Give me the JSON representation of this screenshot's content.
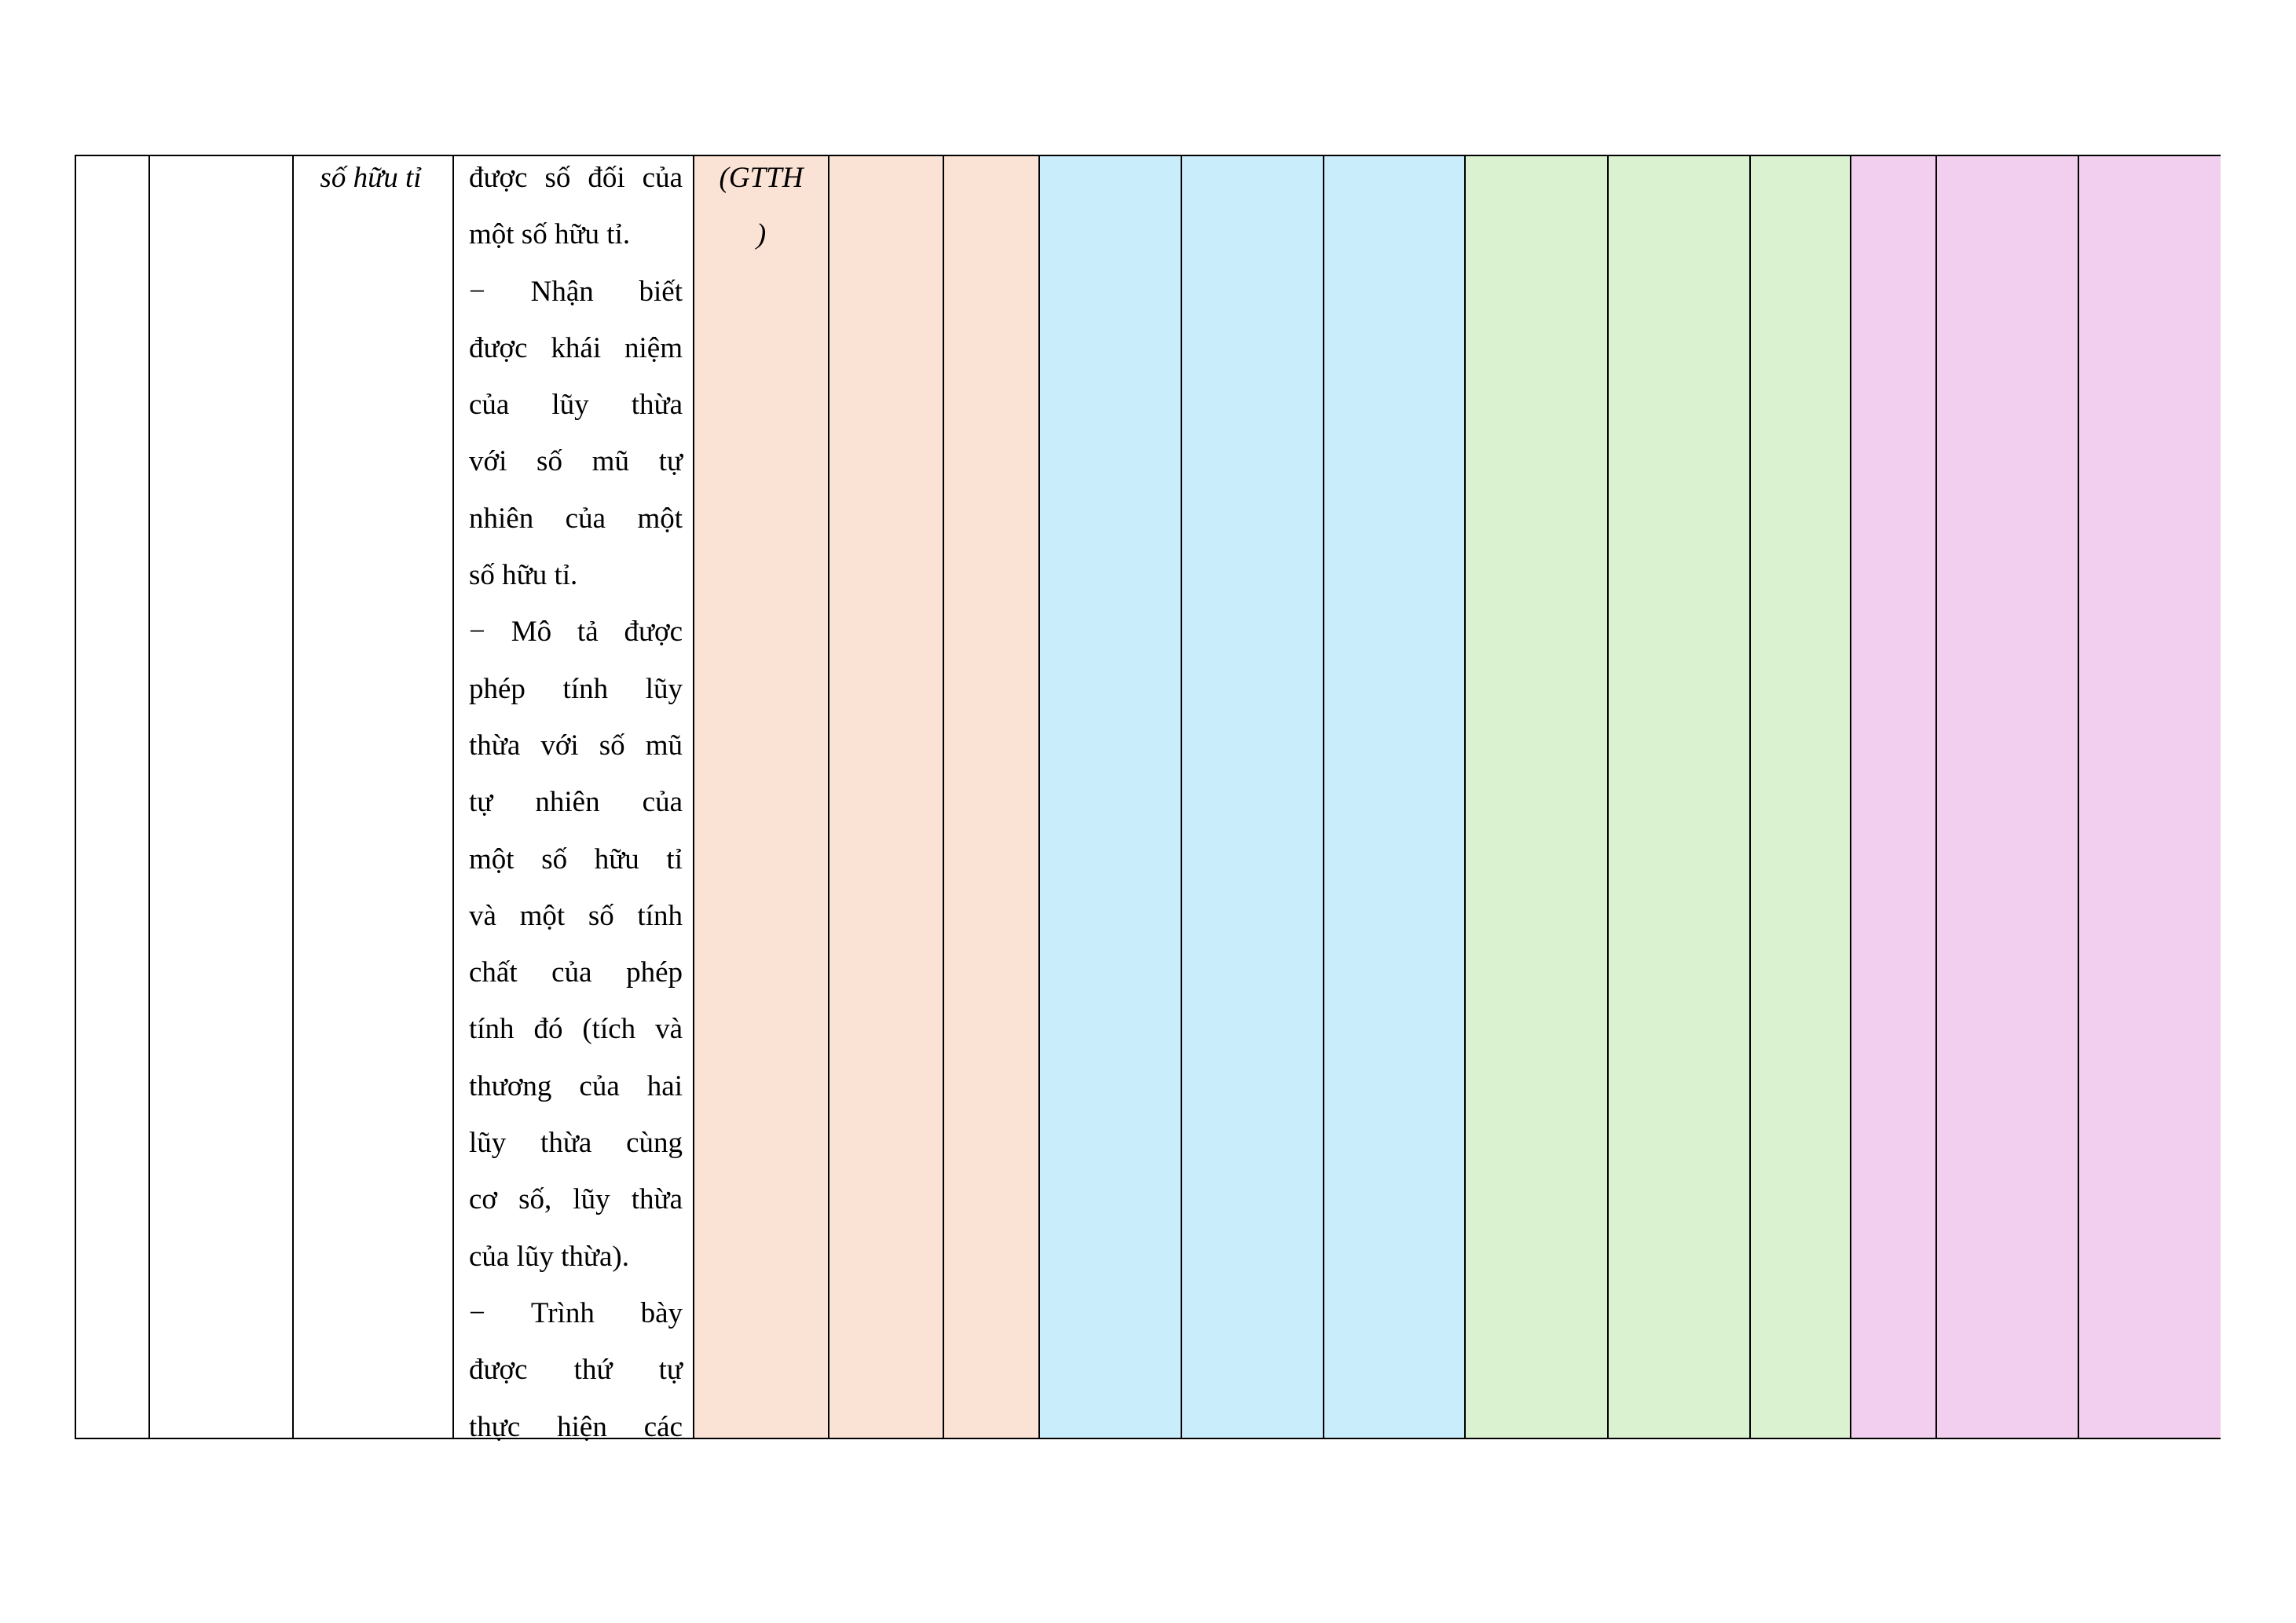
{
  "colors": {
    "peach": "#FAE2D5",
    "blue": "#CAEDFB",
    "green": "#DAF2D0",
    "pink": "#F2CEEF"
  },
  "row": {
    "topic": "số hữu tỉ",
    "requirements": [
      {
        "text": "được số đối của",
        "end": false
      },
      {
        "text": "một số hữu tỉ.",
        "end": true
      },
      {
        "text": "− Nhận biết",
        "end": false
      },
      {
        "text": "được khái niệm",
        "end": false
      },
      {
        "text": "của lũy thừa",
        "end": false
      },
      {
        "text": "với số mũ tự",
        "end": false
      },
      {
        "text": "nhiên của một",
        "end": false
      },
      {
        "text": "số hữu tỉ.",
        "end": true
      },
      {
        "text": "− Mô tả được",
        "end": false
      },
      {
        "text": "phép tính lũy",
        "end": false
      },
      {
        "text": "thừa với số mũ",
        "end": false
      },
      {
        "text": "tự nhiên của",
        "end": false
      },
      {
        "text": "một số hữu tỉ",
        "end": false
      },
      {
        "text": "và một số tính",
        "end": false
      },
      {
        "text": "chất của phép",
        "end": false
      },
      {
        "text": "tính đó (tích và",
        "end": false
      },
      {
        "text": "thương của hai",
        "end": false
      },
      {
        "text": "lũy thừa cùng",
        "end": false
      },
      {
        "text": "cơ số, lũy thừa",
        "end": false
      },
      {
        "text": "của lũy thừa).",
        "end": true
      },
      {
        "text": "− Trình bày",
        "end": false
      },
      {
        "text": "được thứ tự",
        "end": false
      },
      {
        "text": "thực hiện các",
        "end": false
      }
    ],
    "competency_line1": "(GTTH",
    "competency_line2": ")"
  }
}
